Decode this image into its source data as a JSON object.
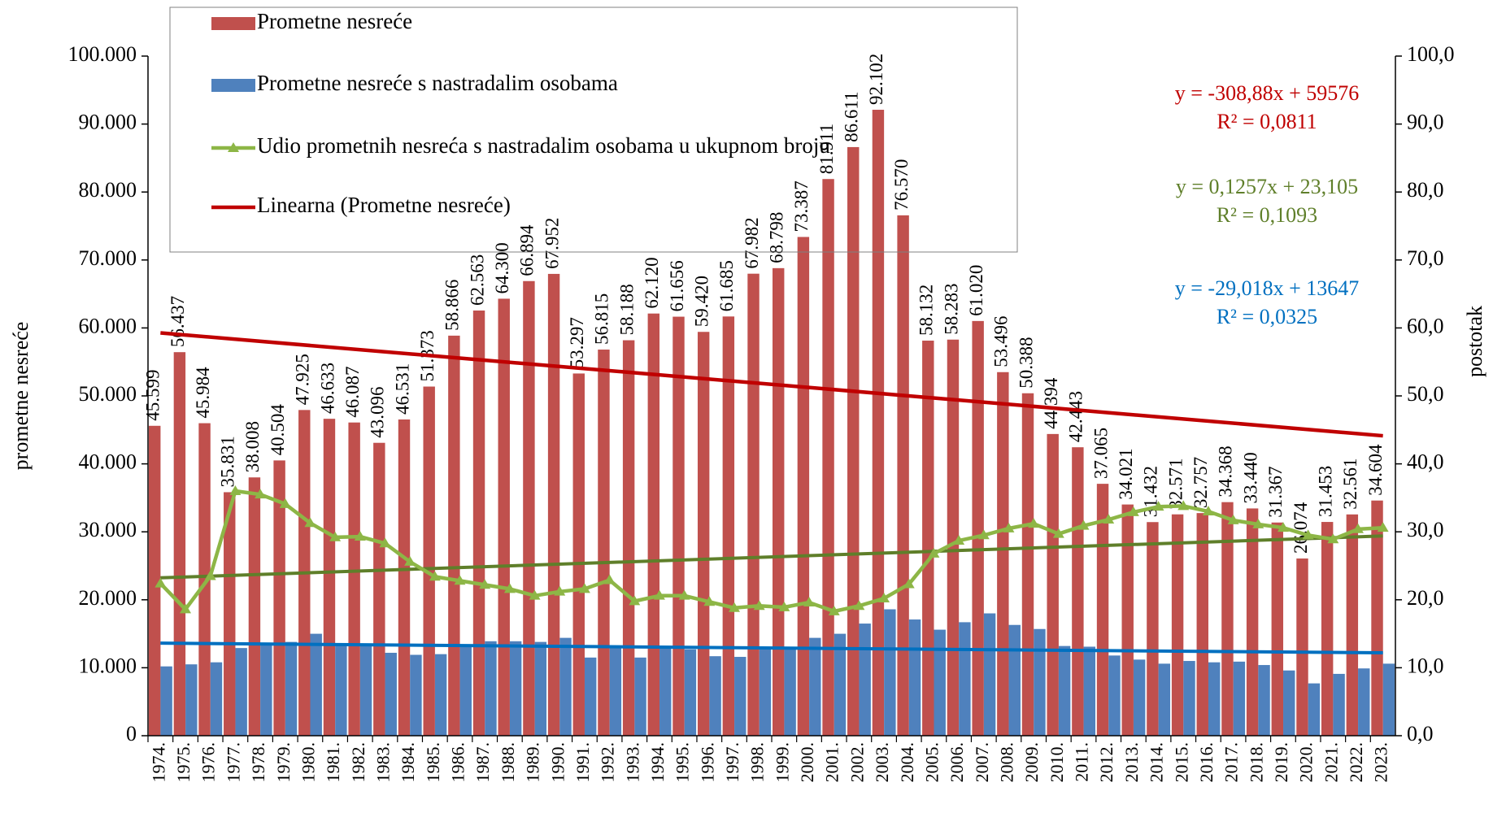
{
  "chart_data": {
    "type": "bar",
    "ylabel": "prometne nesreće",
    "y2label": "postotak",
    "categories": [
      "1974.",
      "1975.",
      "1976.",
      "1977.",
      "1978.",
      "1979.",
      "1980.",
      "1981.",
      "1982.",
      "1983.",
      "1984.",
      "1985.",
      "1986.",
      "1987.",
      "1988.",
      "1989.",
      "1990.",
      "1991.",
      "1992.",
      "1993.",
      "1994.",
      "1995.",
      "1996.",
      "1997.",
      "1998.",
      "1999.",
      "2000.",
      "2001.",
      "2002.",
      "2003.",
      "2004.",
      "2005.",
      "2006.",
      "2007.",
      "2008.",
      "2009.",
      "2010.",
      "2011.",
      "2012.",
      "2013.",
      "2014.",
      "2015.",
      "2016.",
      "2017.",
      "2018.",
      "2019.",
      "2020.",
      "2021.",
      "2022.",
      "2023."
    ],
    "ylim": [
      0,
      100000
    ],
    "yticks": [
      0,
      {
        "value": 10000,
        "label": "10.000"
      },
      {
        "value": 20000,
        "label": "20.000"
      },
      {
        "value": 30000,
        "label": "30.000"
      },
      {
        "value": 40000,
        "label": "40.000"
      },
      {
        "value": 50000,
        "label": "50.000"
      },
      {
        "value": 60000,
        "label": "60.000"
      },
      {
        "value": 70000,
        "label": "70.000"
      },
      {
        "value": 80000,
        "label": "80.000"
      },
      {
        "value": 90000,
        "label": "90.000"
      },
      {
        "value": 100000,
        "label": "100.000"
      }
    ],
    "y2lim": [
      0,
      100
    ],
    "y2ticks": [
      {
        "value": 0,
        "label": "0,0"
      },
      {
        "value": 10,
        "label": "10,0"
      },
      {
        "value": 20,
        "label": "20,0"
      },
      {
        "value": 30,
        "label": "30,0"
      },
      {
        "value": 40,
        "label": "40,0"
      },
      {
        "value": 50,
        "label": "50,0"
      },
      {
        "value": 60,
        "label": "60,0"
      },
      {
        "value": 70,
        "label": "70,0"
      },
      {
        "value": 80,
        "label": "80,0"
      },
      {
        "value": 90,
        "label": "90,0"
      },
      {
        "value": 100,
        "label": "100,0"
      }
    ],
    "series": [
      {
        "name": "Prometne nesreće",
        "type": "bar",
        "color": "#c0504d",
        "values": [
          45599,
          56437,
          45984,
          35831,
          38008,
          40504,
          47925,
          46633,
          46087,
          43096,
          46531,
          51373,
          58866,
          62563,
          64300,
          66894,
          67952,
          53297,
          56815,
          58188,
          62120,
          61656,
          59420,
          61685,
          67982,
          68798,
          73387,
          81911,
          86611,
          92102,
          76570,
          58132,
          58283,
          61020,
          53496,
          50388,
          44394,
          42443,
          37065,
          34021,
          31432,
          32571,
          32757,
          34368,
          33440,
          31367,
          26074,
          31453,
          32561,
          34604
        ],
        "value_labels": [
          "45.599",
          "56.437",
          "45.984",
          "35.831",
          "38.008",
          "40.504",
          "47.925",
          "46.633",
          "46.087",
          "43.096",
          "46.531",
          "51.373",
          "58.866",
          "62.563",
          "64.300",
          "66.894",
          "67.952",
          "53.297",
          "56.815",
          "58.188",
          "62.120",
          "61.656",
          "59.420",
          "61.685",
          "67.982",
          "68.798",
          "73.387",
          "81.911",
          "86.611",
          "92.102",
          "76.570",
          "58.132",
          "58.283",
          "61.020",
          "53.496",
          "50.388",
          "44.394",
          "42.443",
          "37.065",
          "34.021",
          "31.432",
          "32.571",
          "32.757",
          "34.368",
          "33.440",
          "31.367",
          "26.074",
          "31.453",
          "32.561",
          "34.604"
        ]
      },
      {
        "name": "Prometne nesreće s nastradalim osobama",
        "type": "bar",
        "color": "#4f81bd",
        "values": [
          10200,
          10500,
          10800,
          12900,
          13500,
          13800,
          15000,
          13600,
          13500,
          12200,
          11900,
          12000,
          13400,
          13900,
          13900,
          13800,
          14400,
          11500,
          13000,
          11500,
          12800,
          12700,
          11700,
          11600,
          13000,
          13000,
          14400,
          15000,
          16500,
          18600,
          17100,
          15600,
          16700,
          18000,
          16300,
          15700,
          13200,
          13100,
          11800,
          11200,
          10600,
          11000,
          10800,
          10900,
          10400,
          9600,
          7700,
          9100,
          9900,
          10600
        ]
      },
      {
        "name": "Udio prometnih nesreća s nastradalim osobama u ukupnom broju",
        "type": "line",
        "axis": "y2",
        "color": "#8db646",
        "values": [
          22.4,
          18.6,
          23.5,
          36.0,
          35.5,
          34.1,
          31.3,
          29.2,
          29.3,
          28.3,
          25.6,
          23.4,
          22.8,
          22.2,
          21.6,
          20.6,
          21.2,
          21.6,
          22.9,
          19.8,
          20.6,
          20.6,
          19.7,
          18.8,
          19.1,
          18.9,
          19.6,
          18.3,
          19.1,
          20.2,
          22.3,
          26.8,
          28.7,
          29.5,
          30.5,
          31.2,
          29.7,
          30.9,
          31.8,
          32.9,
          33.7,
          33.8,
          33.0,
          31.7,
          31.1,
          30.6,
          29.5,
          28.9,
          30.4,
          30.6
        ]
      }
    ],
    "trendlines": [
      {
        "name": "Linearna (Prometne nesreće)",
        "color": "#c00000",
        "slope": -308.88,
        "intercept": 59576,
        "equation": "y = -308,88x + 59576",
        "r2": "R² = 0,0811"
      },
      {
        "color": "#5f7f2a",
        "axis": "y2",
        "slope": 0.1257,
        "intercept": 23.105,
        "equation": "y = 0,1257x + 23,105",
        "r2": "R² = 0,1093"
      },
      {
        "color": "#0070c0",
        "slope": -29.018,
        "intercept": 13647,
        "equation": "y = -29,018x + 13647",
        "r2": "R² = 0,0325"
      }
    ]
  }
}
